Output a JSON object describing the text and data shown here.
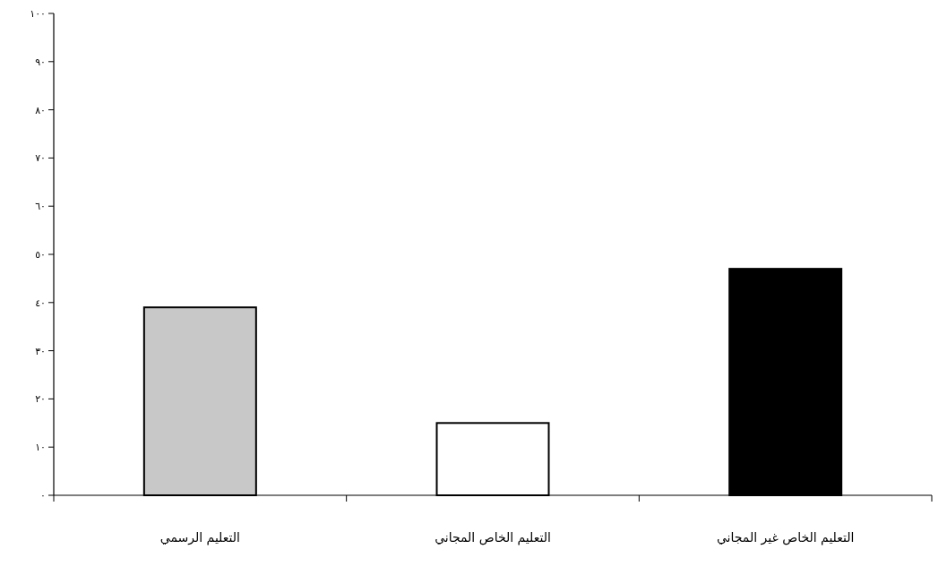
{
  "chart_data": {
    "type": "bar",
    "categories": [
      "التعليم الرسمي",
      "التعليم الخاص المجاني",
      "التعليم الخاص غير المجاني"
    ],
    "values": [
      39,
      15,
      47
    ],
    "colors": [
      "#c8c8c8",
      "#ffffff",
      "#000000"
    ],
    "ylim": [
      0,
      100
    ],
    "yticks": [
      {
        "value": 0,
        "label": "٠"
      },
      {
        "value": 10,
        "label": "١٠"
      },
      {
        "value": 20,
        "label": "٢٠"
      },
      {
        "value": 30,
        "label": "٣٠"
      },
      {
        "value": 40,
        "label": "٤٠"
      },
      {
        "value": 50,
        "label": "٥٠"
      },
      {
        "value": 60,
        "label": "٦٠"
      },
      {
        "value": 70,
        "label": "٧٠"
      },
      {
        "value": 80,
        "label": "٨٠"
      },
      {
        "value": 90,
        "label": "٩٠"
      },
      {
        "value": 100,
        "label": "١٠٠"
      }
    ],
    "grid": false
  }
}
